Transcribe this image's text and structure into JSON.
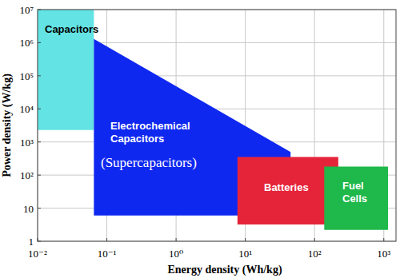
{
  "chart_data": {
    "type": "area",
    "log": true,
    "grid": true,
    "x_label": "Energy density (Wh/kg)",
    "y_label": "Power density (W/kg)",
    "xlim": [
      0.01,
      1500
    ],
    "ylim": [
      1,
      10000000
    ],
    "xticks": [
      {
        "value": 0.01,
        "label": "10⁻²"
      },
      {
        "value": 0.1,
        "label": "10⁻¹"
      },
      {
        "value": 1,
        "label": "10⁰"
      },
      {
        "value": 10,
        "label": "10¹"
      },
      {
        "value": 100,
        "label": "10²"
      },
      {
        "value": 1000,
        "label": "10³"
      }
    ],
    "yticks": [
      1,
      10,
      {
        "value": 100,
        "label": "10²"
      },
      {
        "value": 1000,
        "label": "10³"
      },
      {
        "value": 10000,
        "label": "10⁴"
      },
      {
        "value": 100000,
        "label": "10⁵"
      },
      {
        "value": 1000000,
        "label": "10⁶"
      },
      {
        "value": 10000000,
        "label": "10⁷"
      }
    ],
    "series": [
      {
        "name": "Capacitors",
        "color": "#63e3e3",
        "x": [
          0.01,
          0.065,
          0.065,
          0.01
        ],
        "values": [
          10000000,
          10000000,
          2300,
          2300
        ]
      },
      {
        "name": "Electrochemical Capacitors",
        "color": "#0f28f0",
        "x": [
          0.065,
          45,
          45,
          8,
          8,
          0.065
        ],
        "values": [
          1300000,
          500,
          300,
          300,
          6,
          6
        ]
      },
      {
        "name": "Batteries",
        "color": "#e5243a",
        "x": [
          7.7,
          220,
          220,
          7.7
        ],
        "values": [
          350,
          350,
          3.2,
          3.2
        ]
      },
      {
        "name": "Fuel Cells",
        "color": "#1fb84a",
        "x": [
          138,
          1150,
          1150,
          138
        ],
        "values": [
          180,
          180,
          2.2,
          2.2
        ]
      }
    ],
    "annotations": [
      "(Supercapacitors)"
    ]
  }
}
